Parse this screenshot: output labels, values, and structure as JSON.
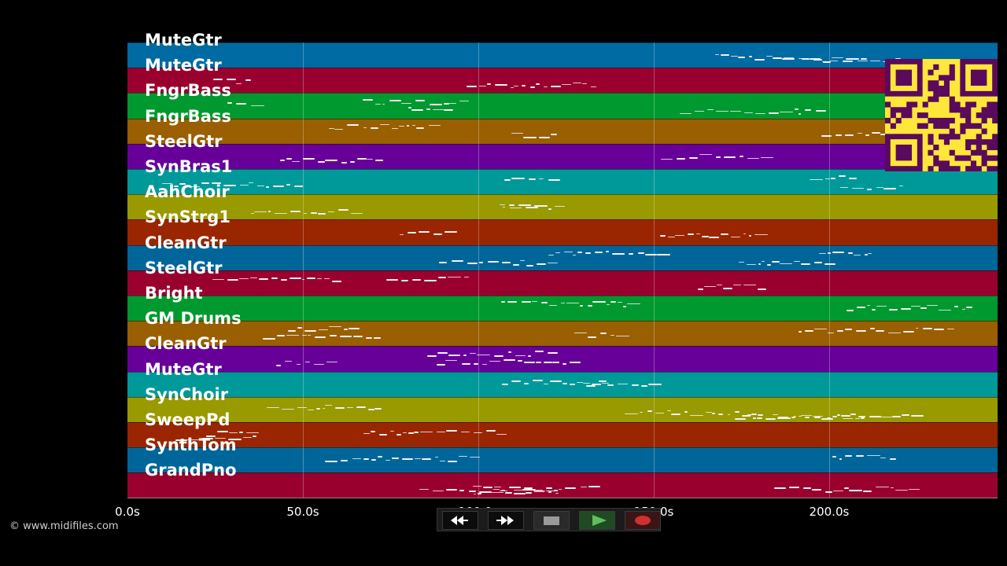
{
  "tracks": [
    {
      "label": "MuteGtr",
      "color": "#006aa3"
    },
    {
      "label": "MuteGtr",
      "color": "#99002e"
    },
    {
      "label": "FngrBass",
      "color": "#00992f"
    },
    {
      "label": "FngrBass",
      "color": "#995f00"
    },
    {
      "label": "SteelGtr",
      "color": "#670099"
    },
    {
      "label": "SynBras1",
      "color": "#009999"
    },
    {
      "label": "AahChoir",
      "color": "#999900"
    },
    {
      "label": "SynStrg1",
      "color": "#992600"
    },
    {
      "label": "CleanGtr",
      "color": "#006699"
    },
    {
      "label": "SteelGtr",
      "color": "#99002e"
    },
    {
      "label": "Bright",
      "color": "#00992f"
    },
    {
      "label": "GM Drums",
      "color": "#995f00"
    },
    {
      "label": "CleanGtr",
      "color": "#670099"
    },
    {
      "label": "MuteGtr",
      "color": "#009999"
    },
    {
      "label": "SynChoir",
      "color": "#999900"
    },
    {
      "label": "SweepPd",
      "color": "#992600"
    },
    {
      "label": "SynthTom",
      "color": "#006699"
    },
    {
      "label": "GrandPno",
      "color": "#99002e"
    }
  ],
  "time_axis": {
    "max_seconds": 248,
    "ticks": [
      {
        "seconds": 0,
        "label": "0.0s"
      },
      {
        "seconds": 50,
        "label": "50.0s"
      },
      {
        "seconds": 100,
        "label": "100.0s"
      },
      {
        "seconds": 150,
        "label": "150.0s"
      },
      {
        "seconds": 200,
        "label": "200.0s"
      }
    ]
  },
  "copyright": "© www.midifiles.com",
  "transport": {
    "rewind": "rewind-icon",
    "fast_forward": "fast-forward-icon",
    "stop": "stop-icon",
    "play": "play-icon",
    "record": "record-icon"
  },
  "colors": {
    "background": "#000000",
    "play": "#5fbf5f",
    "record": "#d03030",
    "qr": "#ffe63a",
    "qr_dark": "#5a0a5a"
  }
}
